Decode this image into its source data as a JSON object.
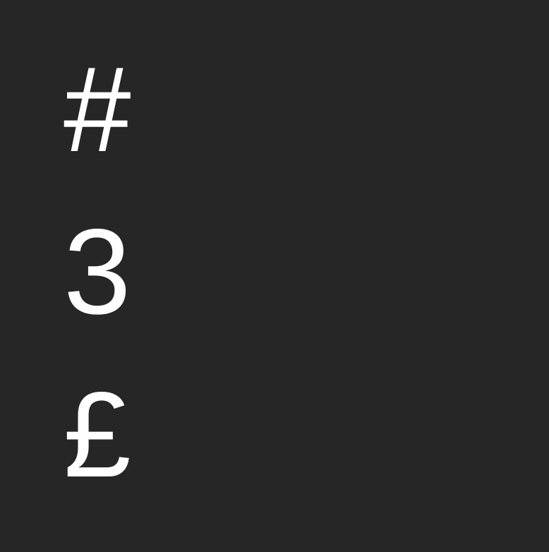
{
  "symbols": {
    "hash": "#",
    "three": "3",
    "pound": "£"
  },
  "colors": {
    "background": "#262626",
    "text": "#ffffff"
  }
}
